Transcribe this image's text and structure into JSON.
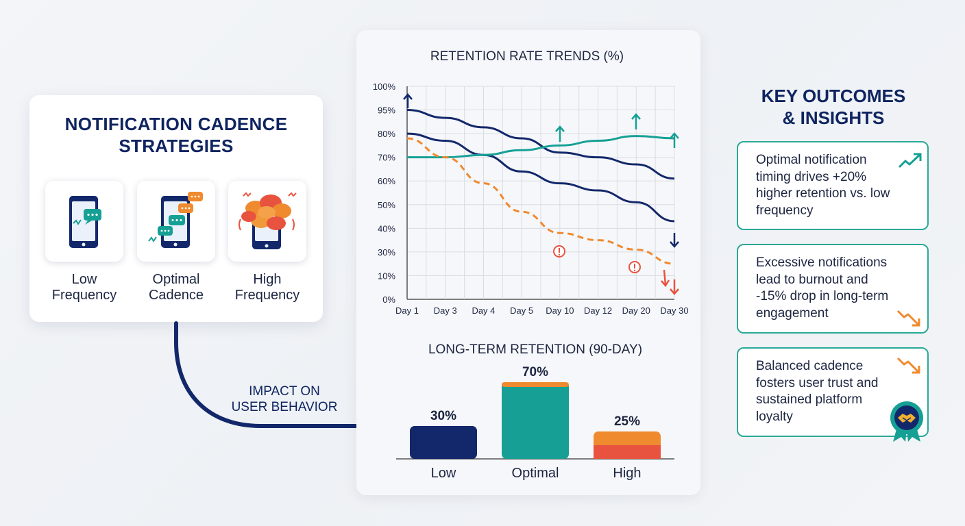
{
  "strategies": {
    "title": "NOTIFICATION CADENCE STRATEGIES",
    "items": [
      {
        "label": "Low Frequency",
        "icon": "phone-few-messages-icon"
      },
      {
        "label": "Optimal Cadence",
        "icon": "phone-balanced-messages-icon"
      },
      {
        "label": "High Frequency",
        "icon": "phone-message-overload-icon"
      }
    ]
  },
  "connector": {
    "label": "IMPACT ON USER BEHAVIOR"
  },
  "outcomes": {
    "title": "KEY OUTCOMES & INSIGHTS",
    "items": [
      {
        "text": "Optimal notification timing drives +20% higher retention vs. low frequency",
        "icon": "trend-up-icon"
      },
      {
        "text": "Excessive notifications lead to burnout and -15% drop in long-term engagement",
        "icon": "trend-down-icon"
      },
      {
        "text": "Balanced cadence fosters user trust and sustained platform loyalty",
        "icon": "handshake-badge-icon"
      }
    ]
  },
  "colors": {
    "navy": "#13286b",
    "teal": "#16a095",
    "orange": "#ef8a2e",
    "red": "#e8533f"
  },
  "chart_data": [
    {
      "type": "line",
      "title": "RETENTION RATE TRENDS (%)",
      "categories": [
        "Day 1",
        "Day 3",
        "Day 4",
        "Day 5",
        "Day 10",
        "Day 12",
        "Day 20",
        "Day 30"
      ],
      "y_tick_labels": [
        "0%",
        "10%",
        "30%",
        "40%",
        "50%",
        "60%",
        "70%",
        "80%",
        "95%",
        "100%"
      ],
      "grid": true,
      "series": [
        {
          "style": "solid",
          "color": "#13286b",
          "values": [
            95,
            90,
            84,
            78,
            72,
            70,
            67,
            61
          ]
        },
        {
          "style": "solid",
          "color": "#13286b",
          "values": [
            80,
            77,
            71,
            64,
            59,
            56,
            51,
            43
          ]
        },
        {
          "style": "solid",
          "color": "#16a095",
          "values": [
            70,
            70,
            71,
            73,
            75,
            77,
            79,
            78
          ]
        },
        {
          "style": "dashed",
          "color": "#ef8a2e",
          "values": [
            78,
            70,
            59,
            47,
            38,
            35,
            31,
            20
          ]
        }
      ],
      "annotations": [
        "warning-icon at Day 10",
        "warning-icon at Day 20",
        "up-arrows on optimal line",
        "down-arrows at Day 30"
      ]
    },
    {
      "type": "bar",
      "title": "LONG-TERM RETENTION (90-DAY)",
      "categories": [
        "Low",
        "Optimal",
        "High"
      ],
      "values": [
        30,
        70,
        25
      ],
      "value_labels": [
        "30%",
        "70%",
        "25%"
      ],
      "colors": [
        "#13286b",
        "#16a095",
        "#ef8a2e"
      ]
    }
  ]
}
